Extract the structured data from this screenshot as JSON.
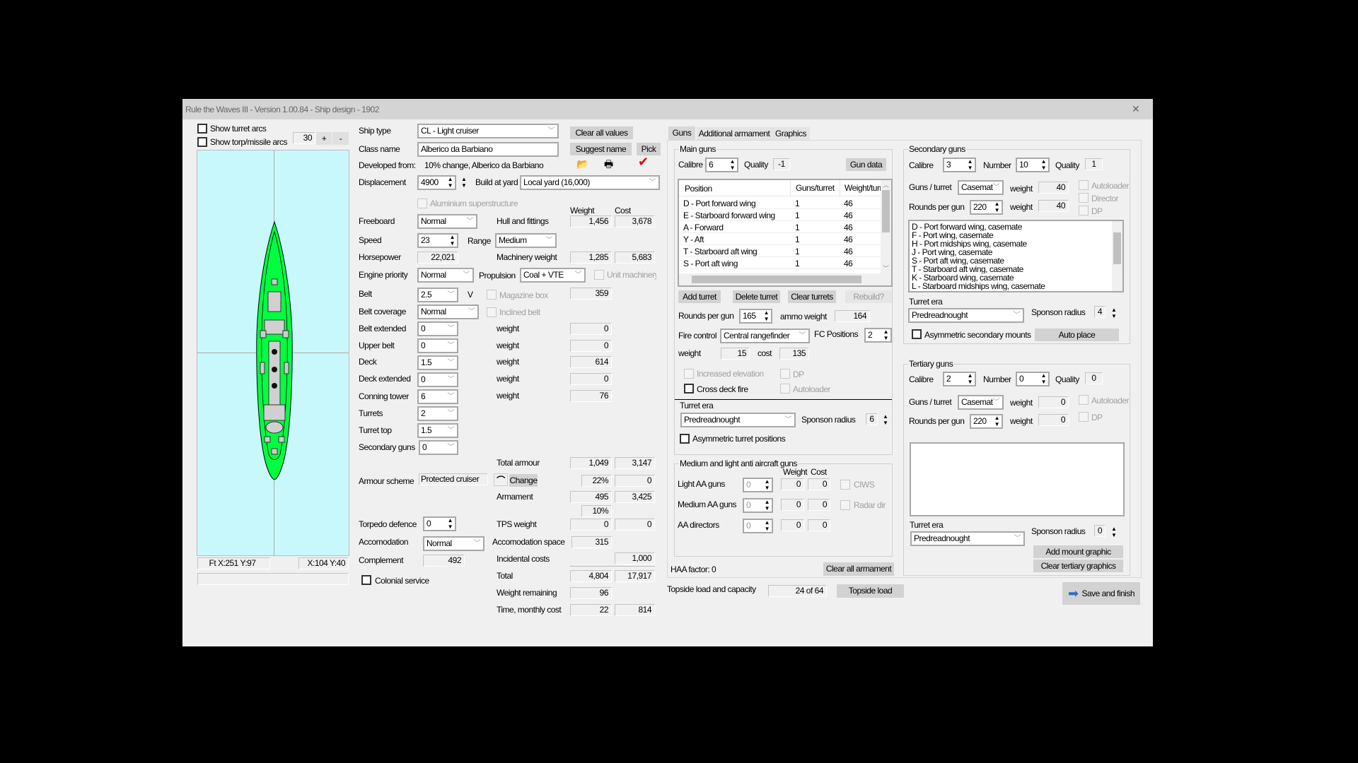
{
  "window": {
    "title": "Rule the Waves III - Version 1.00.84 - Ship design - 1902",
    "close": "✕"
  },
  "left": {
    "show_turret_arcs": "Show turret arcs",
    "show_torp_arcs": "Show torp/missile arcs",
    "zoom_value": "30",
    "zoom_plus": "+",
    "zoom_minus": "-",
    "coord_ft": "Ft X:251 Y:97",
    "coord_xy": "X:104 Y:40",
    "colors": {
      "sea": "#c8f8fc",
      "hull": "#00ff40"
    }
  },
  "design": {
    "ship_type_label": "Ship type",
    "ship_type": "CL - Light cruiser",
    "class_name_label": "Class name",
    "class_name": "Alberico da Barbiano",
    "developed_label": "Developed from:",
    "developed": "10% change, Alberico da Barbiano",
    "clear_all_values": "Clear all values",
    "suggest_name": "Suggest name",
    "pick": "Pick",
    "displacement_label": "Displacement",
    "displacement": "4900",
    "build_label": "Build at yard",
    "build_yard": "Local yard (16,000)",
    "aluminium": "Aluminium superstructure",
    "weight_hdr": "Weight",
    "cost_hdr": "Cost",
    "freeboard_label": "Freeboard",
    "freeboard": "Normal",
    "hull_label": "Hull and fittings",
    "hull_weight": "1,456",
    "hull_cost": "3,678",
    "speed_label": "Speed",
    "speed": "23",
    "range_label": "Range",
    "range": "Medium",
    "hp_label": "Horsepower",
    "hp": "22,021",
    "mach_label": "Machinery weight",
    "mach_weight": "1,285",
    "mach_cost": "5,683",
    "engine_label": "Engine priority",
    "engine": "Normal",
    "prop_label": "Propulsion",
    "propulsion": "Coal + VTE",
    "unit_mach": "Unit machinery",
    "belt_label": "Belt",
    "belt": "2.5",
    "belt_v": "V",
    "magazine_box": "Magazine box",
    "belt_weight": "359",
    "belt_cov_label": "Belt coverage",
    "belt_cov": "Normal",
    "inclined_belt": "Inclined belt",
    "armour_rows": [
      {
        "label": "Belt extended",
        "value": "0",
        "wlabel": "weight",
        "weight": "0"
      },
      {
        "label": "Upper belt",
        "value": "0",
        "wlabel": "weight",
        "weight": "0"
      },
      {
        "label": "Deck",
        "value": "1.5",
        "wlabel": "weight",
        "weight": "614"
      },
      {
        "label": "Deck extended",
        "value": "0",
        "wlabel": "weight",
        "weight": "0"
      },
      {
        "label": "Conning tower",
        "value": "6",
        "wlabel": "weight",
        "weight": "76"
      },
      {
        "label": "Turrets",
        "value": "2"
      },
      {
        "label": "Turret top",
        "value": "1.5"
      },
      {
        "label": "Secondary guns",
        "value": "0"
      }
    ],
    "total_armour_label": "Total armour",
    "total_armour_weight": "1,049",
    "total_armour_cost": "3,147",
    "armour_scheme_label": "Armour scheme",
    "armour_scheme": "Protected cruiser",
    "change": "Change",
    "armour_pct": "22%",
    "armour_pct_cost": "0",
    "armament_label": "Armament",
    "armament_weight": "495",
    "armament_cost": "3,425",
    "armament_pct": "10%",
    "torp_label": "Torpedo defence",
    "torp": "0",
    "tps_label": "TPS weight",
    "tps_weight": "0",
    "tps_cost": "0",
    "accom_label": "Accomodation",
    "accom": "Normal",
    "accom_space_label": "Accomodation space",
    "accom_space": "315",
    "complement_label": "Complement",
    "complement": "492",
    "incidental_label": "Incidental costs",
    "incidental": "1,000",
    "colonial": "Colonial service",
    "total_label": "Total",
    "total_weight": "4,804",
    "total_cost": "17,917",
    "remaining_label": "Weight remaining",
    "remaining": "96",
    "time_label": "Time, monthly cost",
    "time": "22",
    "monthly": "814"
  },
  "tabs": [
    {
      "label": "Guns"
    },
    {
      "label": "Additional armament"
    },
    {
      "label": "Graphics"
    }
  ],
  "main_guns": {
    "title": "Main guns",
    "calibre_label": "Calibre",
    "calibre": "6",
    "quality_label": "Quality",
    "quality": "-1",
    "gun_data": "Gun data",
    "columns": [
      "Position",
      "Guns/turret",
      "Weight/turret"
    ],
    "rows": [
      [
        "D - Port forward wing",
        "1",
        "46"
      ],
      [
        "E - Starboard forward wing",
        "1",
        "46"
      ],
      [
        "A - Forward",
        "1",
        "46"
      ],
      [
        "Y - Aft",
        "1",
        "46"
      ],
      [
        "T - Starboard aft wing",
        "1",
        "46"
      ],
      [
        "S - Port aft wing",
        "1",
        "46"
      ]
    ],
    "add_turret": "Add turret",
    "delete_turret": "Delete turret",
    "clear_turrets": "Clear turrets",
    "rebuild": "Rebuild?",
    "rounds_label": "Rounds per gun",
    "rounds": "165",
    "ammo_label": "ammo weight",
    "ammo": "164",
    "fc_label": "Fire control",
    "fc": "Central rangefinder",
    "fcpos_label": "FC Positions",
    "fcpos": "2",
    "weight_label": "weight",
    "weight": "15",
    "cost_label": "cost",
    "cost": "135",
    "inc_elev": "Increased elevation",
    "dp": "DP",
    "cross_deck": "Cross deck fire",
    "autoloader": "Autoloader",
    "era_label": "Turret era",
    "era": "Predreadnought",
    "sponson_label": "Sponson radius",
    "sponson": "6",
    "asym": "Asymmetric turret positions"
  },
  "aa": {
    "title": "Medium and light anti aircraft guns",
    "weight_hdr": "Weight",
    "cost_hdr": "Cost",
    "rows": [
      {
        "label": "Light AA guns",
        "value": "0",
        "weight": "0",
        "cost": "0",
        "opt": "CIWS"
      },
      {
        "label": "Medium AA guns",
        "value": "0",
        "weight": "0",
        "cost": "0",
        "opt": "Radar dir"
      },
      {
        "label": "AA directors",
        "value": "0",
        "weight": "0",
        "cost": "0"
      }
    ],
    "haa": "HAA factor: 0",
    "clear_all": "Clear all armament"
  },
  "secondary": {
    "title": "Secondary guns",
    "calibre_label": "Calibre",
    "calibre": "3",
    "number_label": "Number",
    "number": "10",
    "quality_label": "Quality",
    "quality": "1",
    "gpt_label": "Guns / turret",
    "gpt": "Casemat",
    "weight_label": "weight",
    "weight1": "40",
    "weight2": "40",
    "autoloader": "Autoloader",
    "director": "Director",
    "dp": "DP",
    "rounds_label": "Rounds per gun",
    "rounds": "220",
    "list": [
      "D - Port forward wing, casemate",
      "F - Port wing, casemate",
      "H - Port midships wing, casemate",
      "J - Port wing, casemate",
      "S - Port aft wing, casemate",
      "T - Starboard aft wing, casemate",
      "K - Starboard wing, casemate",
      "L - Starboard midships wing, casemate"
    ],
    "era_label": "Turret era",
    "era": "Predreadnought",
    "sponson_label": "Sponson radius",
    "sponson": "4",
    "asym": "Asymmetric secondary mounts",
    "auto_place": "Auto place"
  },
  "tertiary": {
    "title": "Tertiary guns",
    "calibre_label": "Calibre",
    "calibre": "2",
    "number_label": "Number",
    "number": "0",
    "quality_label": "Quality",
    "quality": "0",
    "gpt_label": "Guns / turret",
    "gpt": "Casemat",
    "weight_label": "weight",
    "weight1": "0",
    "weight2": "0",
    "autoloader": "Autoloader",
    "dp": "DP",
    "rounds_label": "Rounds per gun",
    "rounds": "220",
    "era_label": "Turret era",
    "era": "Predreadnought",
    "sponson_label": "Sponson radius",
    "sponson": "0",
    "add_mount": "Add mount graphic",
    "clear_graphics": "Clear tertiary graphics"
  },
  "footer": {
    "topside_label": "Topside load and capacity",
    "topside": "24 of 64",
    "topside_btn": "Topside load",
    "save": "Save and finish"
  }
}
